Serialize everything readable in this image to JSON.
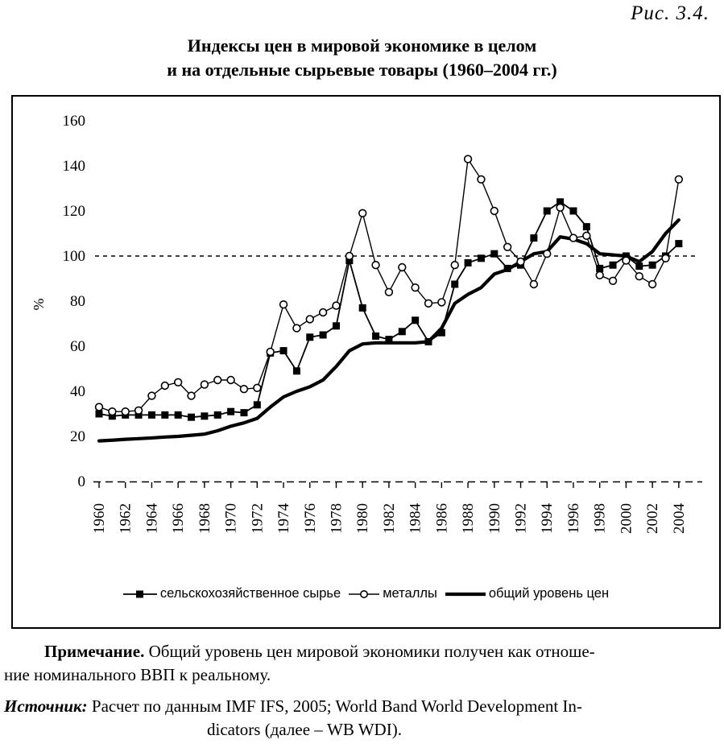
{
  "figure_label": "Рис. 3.4.",
  "title": {
    "line1": "Индексы цен в мировой экономике в целом",
    "line2": "и на отдельные сырьевые товары (1960–2004 гг.)"
  },
  "note": {
    "label": "Примечание.",
    "line1": "Общий уровень цен мировой экономики получен как отноше-",
    "line2": "ние номинального ВВП к реальному."
  },
  "source": {
    "label": "Источник:",
    "line1": "Расчет по данным IMF IFS, 2005; World Band World Development In-",
    "line2": "dicators (далее – WB WDI)."
  },
  "colors": {
    "background": "#ffffff",
    "ink": "#000000"
  },
  "chart_data": {
    "type": "line",
    "title": "Индексы цен в мировой экономике в целом и на отдельные сырьевые товары (1960–2004 гг.)",
    "xlabel": "",
    "ylabel": "%",
    "ylim": [
      0,
      160
    ],
    "yticks": [
      0,
      20,
      40,
      60,
      80,
      100,
      120,
      140,
      160
    ],
    "reference_line": 100,
    "grid": false,
    "legend_position": "bottom",
    "x_start": 1960,
    "x_end": 2004,
    "xtick_labels": [
      "1960",
      "1962",
      "1964",
      "1966",
      "1968",
      "1970",
      "1972",
      "1974",
      "1976",
      "1978",
      "1980",
      "1982",
      "1984",
      "1986",
      "1988",
      "1990",
      "1992",
      "1994",
      "1996",
      "1998",
      "2000",
      "2002",
      "2004"
    ],
    "series": [
      {
        "name": "сельскохозяйственное сырье",
        "marker": "filled-square",
        "line": "thin",
        "values": [
          30,
          29,
          29.5,
          29.5,
          29.5,
          29.5,
          29.5,
          28.5,
          29,
          29.5,
          31,
          30.5,
          34,
          57,
          58,
          49,
          64,
          65,
          69,
          98,
          77,
          64.5,
          63,
          66.5,
          71.5,
          62,
          66,
          87.5,
          97,
          99,
          101,
          94.5,
          96,
          108,
          120,
          124,
          120,
          113,
          94.5,
          96,
          100,
          95.5,
          96,
          100,
          105.5
        ]
      },
      {
        "name": "металлы",
        "marker": "open-circle",
        "line": "thin",
        "values": [
          33,
          31,
          31,
          31.5,
          38,
          42.5,
          44,
          38,
          43,
          45,
          45,
          41,
          41.5,
          57.5,
          78.5,
          68,
          72,
          75,
          78,
          100,
          119,
          96,
          84,
          95,
          86,
          79,
          79.5,
          96,
          143,
          134,
          120,
          104,
          97.5,
          87.5,
          101,
          121.5,
          108,
          109,
          91.5,
          89,
          98,
          91,
          87.5,
          99,
          134
        ]
      },
      {
        "name": "общий уровень цен",
        "marker": "none",
        "line": "thick",
        "values": [
          18,
          18.3,
          18.7,
          19,
          19.3,
          19.7,
          20,
          20.5,
          21,
          22.5,
          24.5,
          26,
          28,
          33,
          37.5,
          40,
          42,
          45,
          51,
          58,
          61,
          61.5,
          61.5,
          61.5,
          61.5,
          62,
          68,
          79,
          83,
          86,
          92,
          94,
          97.5,
          101,
          102,
          108.5,
          107.5,
          105.5,
          101,
          100.5,
          100,
          97.5,
          102,
          110,
          116
        ]
      }
    ]
  }
}
